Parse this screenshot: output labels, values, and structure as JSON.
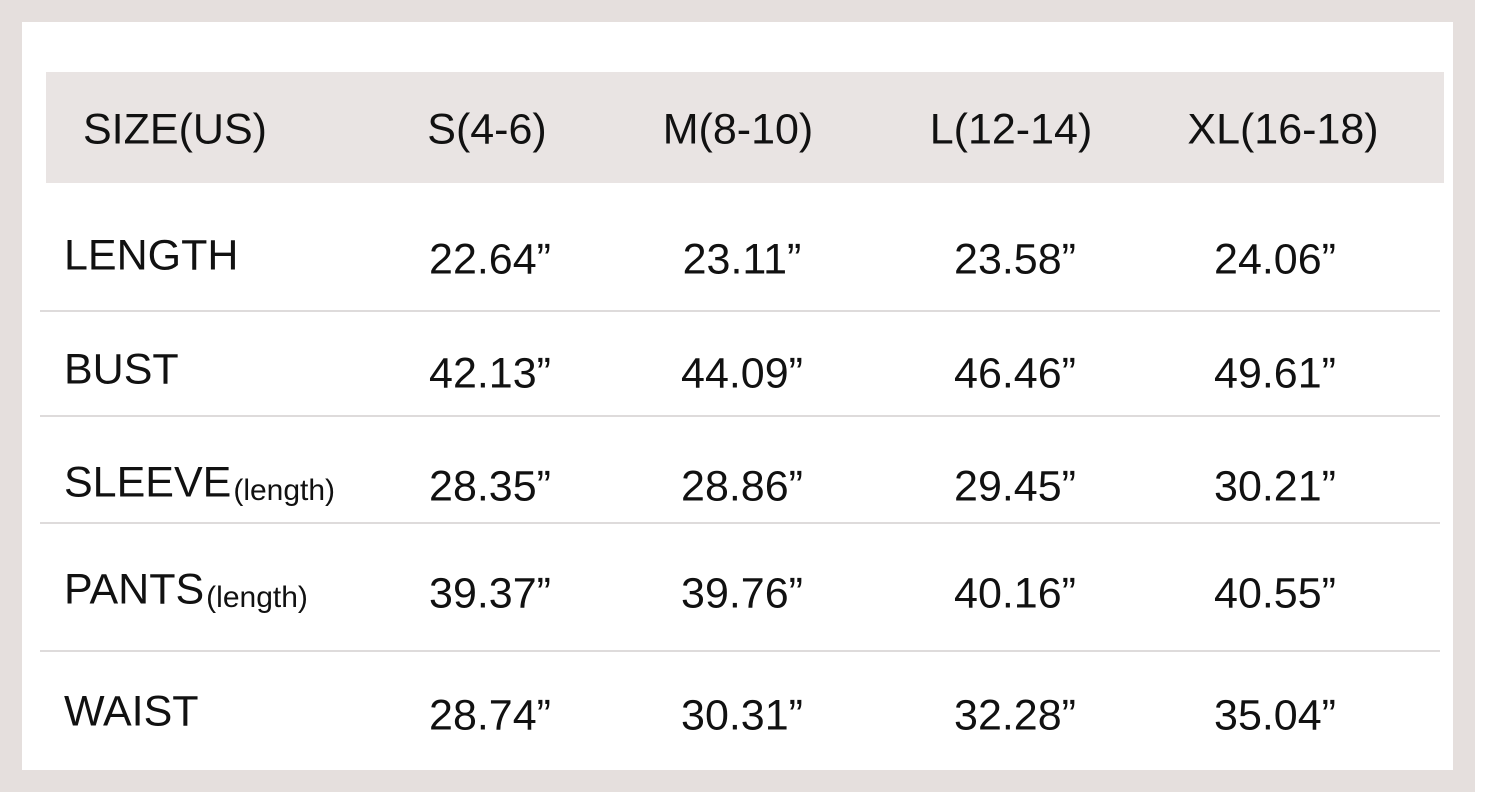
{
  "table": {
    "header": [
      "SIZE(US)",
      "S(4-6)",
      "M(8-10)",
      "L(12-14)",
      "XL(16-18)"
    ],
    "rows": [
      {
        "label": "LENGTH",
        "cells": [
          "22.64”",
          "23.11”",
          "23.58”",
          "24.06”"
        ]
      },
      {
        "label": "BUST",
        "cells": [
          "42.13”",
          "44.09”",
          "46.46”",
          "49.61”"
        ]
      },
      {
        "label": "SLEEVE",
        "note": "(length)",
        "cells": [
          "28.35”",
          "28.86”",
          "29.45”",
          "30.21”"
        ]
      },
      {
        "label": "PANTS",
        "note": "(length)",
        "cells": [
          "39.37”",
          "39.76”",
          "40.16”",
          "40.55”"
        ]
      },
      {
        "label": "WAIST",
        "cells": [
          "28.74”",
          "30.31”",
          "32.28”",
          "35.04”"
        ]
      }
    ]
  }
}
